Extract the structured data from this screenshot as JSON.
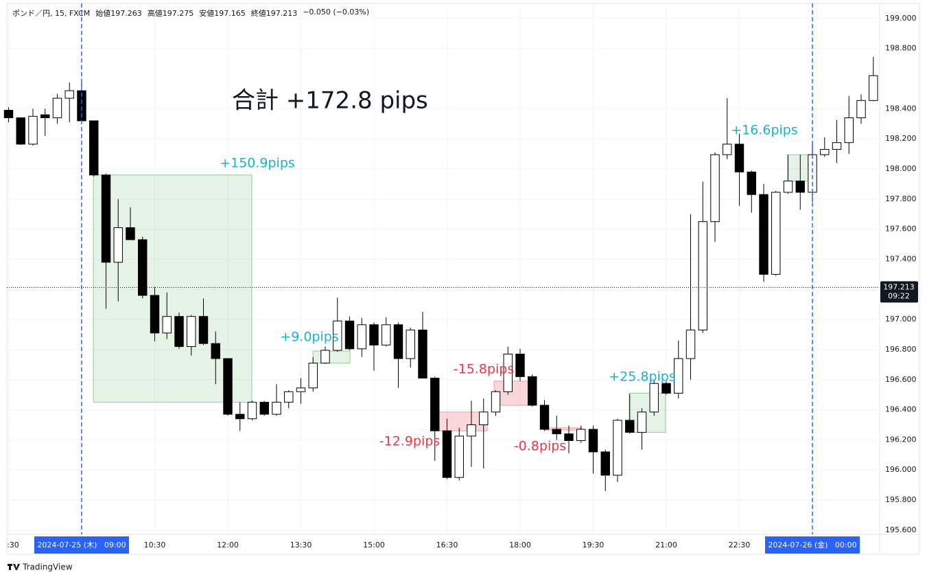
{
  "chart_data": {
    "type": "candlestick",
    "header": {
      "symbol": "ポンド／円, 15, FXCM",
      "open": "始値197.263",
      "high": "高値197.275",
      "low": "安値197.165",
      "close": "終値197.213",
      "change": "−0.050 (−0.03%)"
    },
    "title": "合計 +172.8 pips",
    "categories": [
      ":30",
      null,
      null,
      null,
      null,
      null,
      "2024-07-25 (木)   09:00",
      null,
      null,
      null,
      null,
      null,
      "10:30",
      null,
      null,
      null,
      null,
      null,
      "12:00",
      null,
      null,
      null,
      null,
      null,
      "13:30",
      null,
      null,
      null,
      null,
      null,
      "15:00",
      null,
      null,
      null,
      null,
      null,
      "16:30",
      null,
      null,
      null,
      null,
      null,
      "18:00",
      null,
      null,
      null,
      null,
      null,
      "19:30",
      null,
      null,
      null,
      null,
      null,
      "21:00",
      null,
      null,
      null,
      null,
      null,
      "22:30",
      null,
      null,
      null,
      null,
      null,
      "2024-07-26 (金)   00:00",
      null,
      null,
      null,
      null,
      null
    ],
    "open": [
      198.39,
      198.34,
      198.165,
      198.36,
      198.34,
      198.47,
      198.52,
      198.32,
      197.96,
      197.38,
      197.61,
      197.53,
      197.16,
      196.91,
      197.02,
      196.82,
      197.02,
      196.84,
      196.74,
      196.37,
      196.34,
      196.45,
      196.37,
      196.45,
      196.52,
      196.545,
      196.71,
      196.795,
      196.99,
      196.805,
      196.965,
      196.83,
      196.965,
      196.74,
      196.93,
      196.61,
      196.26,
      195.95,
      196.225,
      196.3,
      196.385,
      196.52,
      196.77,
      196.62,
      196.43,
      196.27,
      196.24,
      196.195,
      196.27,
      196.12,
      195.965,
      196.33,
      196.25,
      196.385,
      196.575,
      196.51,
      196.74,
      196.93,
      197.65,
      198.095,
      198.165,
      197.98,
      197.83,
      197.3,
      197.845,
      197.92,
      197.845,
      198.095,
      198.13,
      198.175,
      198.34,
      198.455
    ],
    "high": [
      198.41,
      198.34,
      198.4,
      198.4,
      198.5,
      198.575,
      198.6,
      198.32,
      197.97,
      197.8,
      197.745,
      197.55,
      197.215,
      197.18,
      197.045,
      197.03,
      197.14,
      196.92,
      196.74,
      196.45,
      196.46,
      196.46,
      196.57,
      196.53,
      196.61,
      196.75,
      196.82,
      197.145,
      197.02,
      197.01,
      196.98,
      197.015,
      196.98,
      196.945,
      197.05,
      196.62,
      196.34,
      196.28,
      196.46,
      196.475,
      196.53,
      196.82,
      196.805,
      196.635,
      196.465,
      196.36,
      196.295,
      196.295,
      196.295,
      196.135,
      196.34,
      196.505,
      196.41,
      196.6,
      196.59,
      196.86,
      197.7,
      197.915,
      198.11,
      198.47,
      198.235,
      197.99,
      197.9,
      197.855,
      198.095,
      198.095,
      198.165,
      198.21,
      198.325,
      198.485,
      198.495,
      198.745
    ],
    "low": [
      198.31,
      198.16,
      198.155,
      198.22,
      198.3,
      198.31,
      198.31,
      197.95,
      197.07,
      197.12,
      197.53,
      197.14,
      196.855,
      196.87,
      196.805,
      196.76,
      196.83,
      196.57,
      196.36,
      196.26,
      196.33,
      196.36,
      196.36,
      196.41,
      196.44,
      196.52,
      196.705,
      196.785,
      196.795,
      196.75,
      196.66,
      196.82,
      196.545,
      196.68,
      196.61,
      196.06,
      195.94,
      195.93,
      196.02,
      196.01,
      196.36,
      196.5,
      196.59,
      196.42,
      196.26,
      196.2,
      196.11,
      196.18,
      195.975,
      195.86,
      195.92,
      196.24,
      196.135,
      196.36,
      196.5,
      196.475,
      196.6,
      196.91,
      197.515,
      198.065,
      197.755,
      197.71,
      197.25,
      197.29,
      197.835,
      197.73,
      197.78,
      198.08,
      198.04,
      198.1,
      198.3,
      198.45
    ],
    "close": [
      198.34,
      198.165,
      198.35,
      198.34,
      198.47,
      198.52,
      198.32,
      197.96,
      197.38,
      197.61,
      197.53,
      197.16,
      196.91,
      197.02,
      196.82,
      197.02,
      196.84,
      196.74,
      196.37,
      196.34,
      196.45,
      196.37,
      196.45,
      196.52,
      196.545,
      196.71,
      196.795,
      196.99,
      196.805,
      196.965,
      196.83,
      196.965,
      196.74,
      196.93,
      196.61,
      196.26,
      195.95,
      196.225,
      196.3,
      196.385,
      196.52,
      196.77,
      196.62,
      196.43,
      196.27,
      196.24,
      196.195,
      196.27,
      196.12,
      195.965,
      196.33,
      196.25,
      196.385,
      196.575,
      196.51,
      196.74,
      196.93,
      197.65,
      198.095,
      198.165,
      197.98,
      197.83,
      197.3,
      197.845,
      197.92,
      197.845,
      198.095,
      198.13,
      198.175,
      198.34,
      198.455,
      198.62
    ],
    "up_color": "#ffffff",
    "down_color": "#000000",
    "border_color": "#000000",
    "xlim": [
      -0.14,
      71.52
    ],
    "ylim": [
      195.572,
      199.1
    ],
    "yticks": [
      {
        "value": 199,
        "label": "199.000"
      },
      {
        "value": 198.8,
        "label": "198.800"
      },
      {
        "value": 198.4,
        "label": "198.400"
      },
      {
        "value": 198.2,
        "label": "198.200"
      },
      {
        "value": 198,
        "label": "198.000"
      },
      {
        "value": 197.8,
        "label": "197.800"
      },
      {
        "value": 197.6,
        "label": "197.600"
      },
      {
        "value": 197.4,
        "label": "197.400"
      },
      {
        "value": 197,
        "label": "197.000"
      },
      {
        "value": 196.8,
        "label": "196.800"
      },
      {
        "value": 196.6,
        "label": "196.600"
      },
      {
        "value": 196.4,
        "label": "196.400"
      },
      {
        "value": 196.2,
        "label": "196.200"
      },
      {
        "value": 196,
        "label": "196.000"
      },
      {
        "value": 195.8,
        "label": "195.800"
      },
      {
        "value": 195.6,
        "label": "195.600"
      }
    ],
    "grid": true,
    "dashed_lines": [
      6,
      66
    ],
    "last_price": 197.213,
    "last_time": "09:22",
    "annotations": [
      {
        "text": "+150.9pips",
        "x": [
          6.96,
          19.97
        ],
        "y": [
          197.96,
          196.45
        ],
        "color": "#17b3d1",
        "box_fill": "rgba(76,175,80,0.15)",
        "box_stroke": "#8fcf92"
      },
      {
        "text": "+9.0pips",
        "x": [
          24.99,
          28.03
        ],
        "y": [
          196.79,
          196.71
        ],
        "color": "#17b3d1",
        "box_fill": "rgba(76,175,80,0.15)",
        "box_stroke": "#8fcf92"
      },
      {
        "text": "-12.9pips",
        "x": [
          34.96,
          39.3
        ],
        "y": [
          196.385,
          196.26
        ],
        "color": "#f23645",
        "box_fill": "rgba(242,54,69,0.2)",
        "box_stroke": "#f59aa2"
      },
      {
        "text": "-15.8pips",
        "x": [
          39.86,
          42.96
        ],
        "y": [
          196.59,
          196.43
        ],
        "color": "#f23645",
        "box_fill": "rgba(242,54,69,0.2)",
        "box_stroke": "#f59aa2"
      },
      {
        "text": "-0.8pips",
        "x": [
          43.97,
          47.07
        ],
        "y": [
          196.28,
          196.265
        ],
        "color": "#f23645",
        "box_fill": "rgba(242,54,69,0.2)",
        "box_stroke": "#f59aa2"
      },
      {
        "text": "+25.8pips",
        "x": [
          50.96,
          53.94
        ],
        "y": [
          196.51,
          196.25
        ],
        "color": "#17b3d1",
        "box_fill": "rgba(76,175,80,0.15)",
        "box_stroke": "#8fcf92"
      },
      {
        "text": "+16.6pips",
        "x": [
          63.97,
          65.94
        ],
        "y": [
          198.095,
          197.92
        ],
        "color": "#17b3d1",
        "box_fill": "rgba(76,175,80,0.15)",
        "box_stroke": "#8fcf92"
      }
    ],
    "footer": "TradingView"
  }
}
